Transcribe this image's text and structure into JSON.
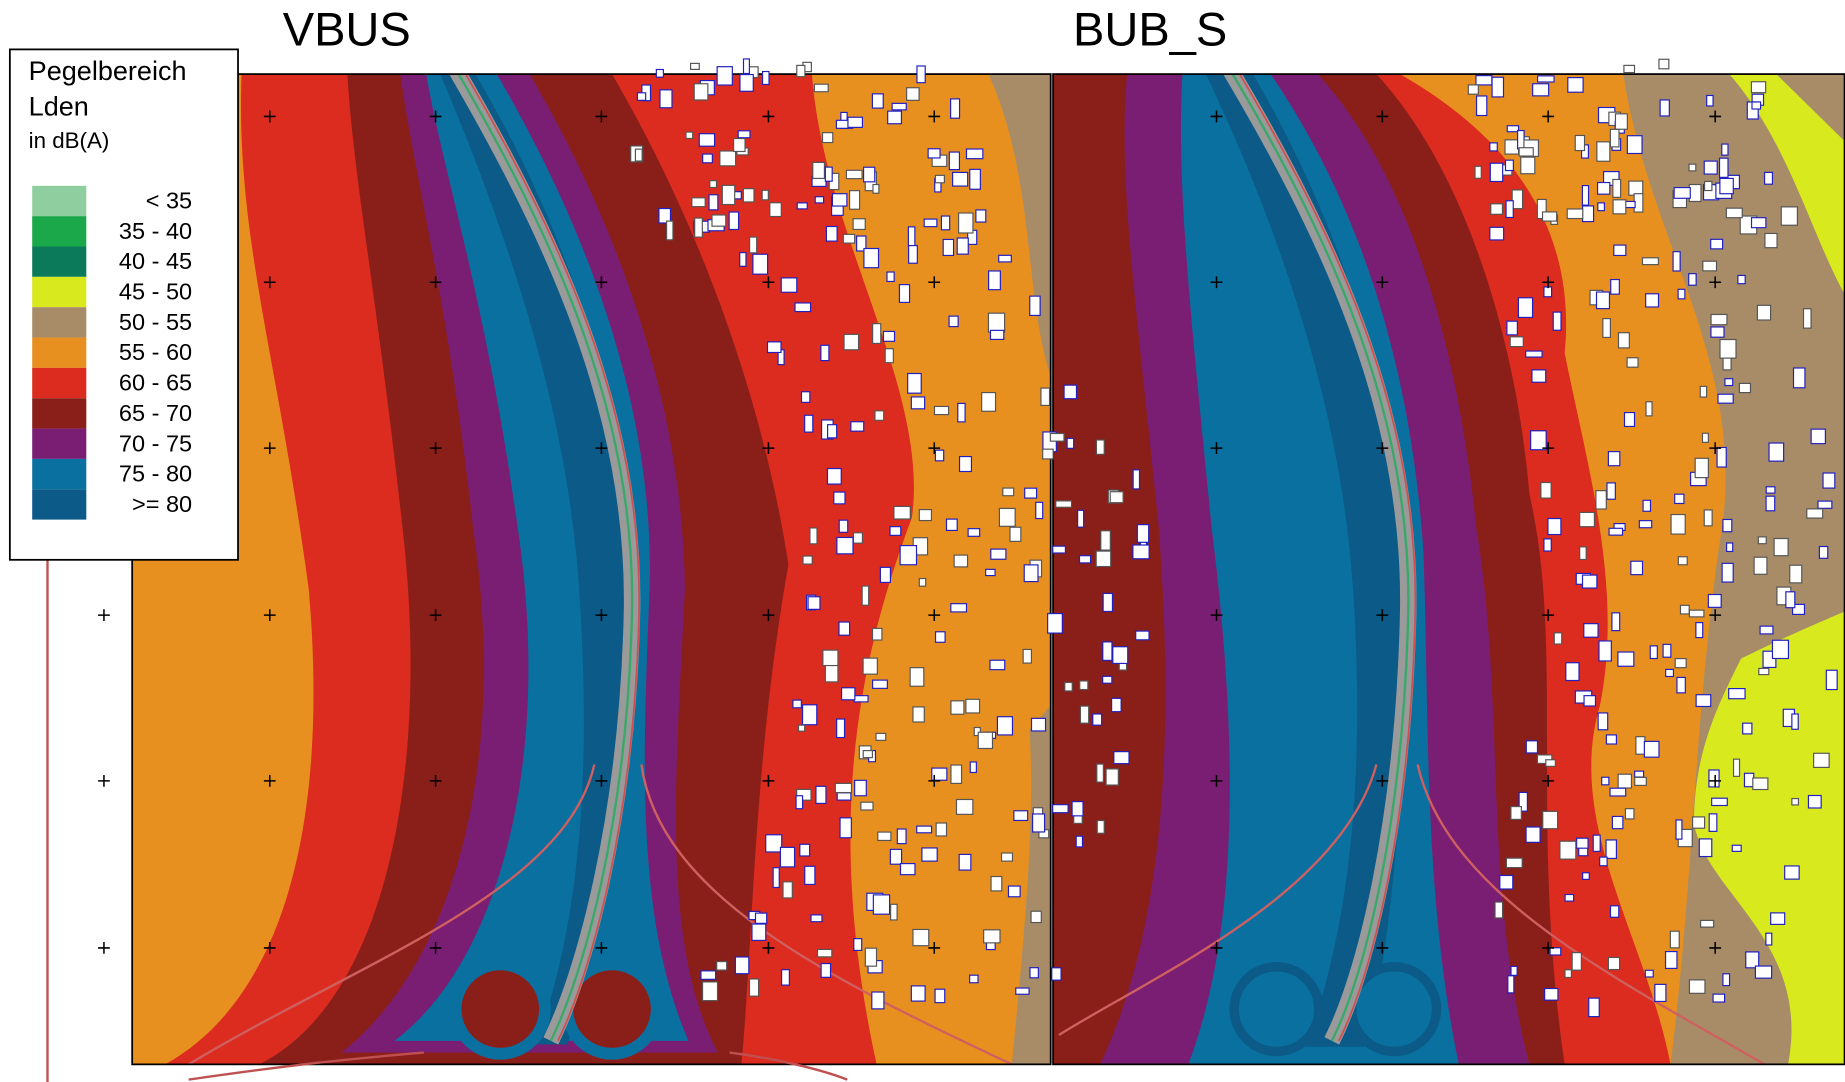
{
  "panels": [
    {
      "title": "VBUS"
    },
    {
      "title": "BUB_S"
    }
  ],
  "legend": {
    "title": "Pegelbereich",
    "subtitle": "Lden",
    "unit": "in dB(A)",
    "items": [
      {
        "label": "< 35",
        "color": "#8fcf9f"
      },
      {
        "label": "35  -  40",
        "color": "#1aa84a"
      },
      {
        "label": "40  -  45",
        "color": "#0b7a5a"
      },
      {
        "label": "45  -  50",
        "color": "#d8ea1e"
      },
      {
        "label": "50  -  55",
        "color": "#a78c67"
      },
      {
        "label": "55  -  60",
        "color": "#e8901f"
      },
      {
        "label": "60  -  65",
        "color": "#dc2b1f"
      },
      {
        "label": "65  -  70",
        "color": "#8a1f1a"
      },
      {
        "label": "70  -  75",
        "color": "#7a1e73"
      },
      {
        "label": "75  -  80",
        "color": "#0a70a0"
      },
      {
        "label": ">= 80",
        "color": "#0b5a87"
      }
    ]
  }
}
